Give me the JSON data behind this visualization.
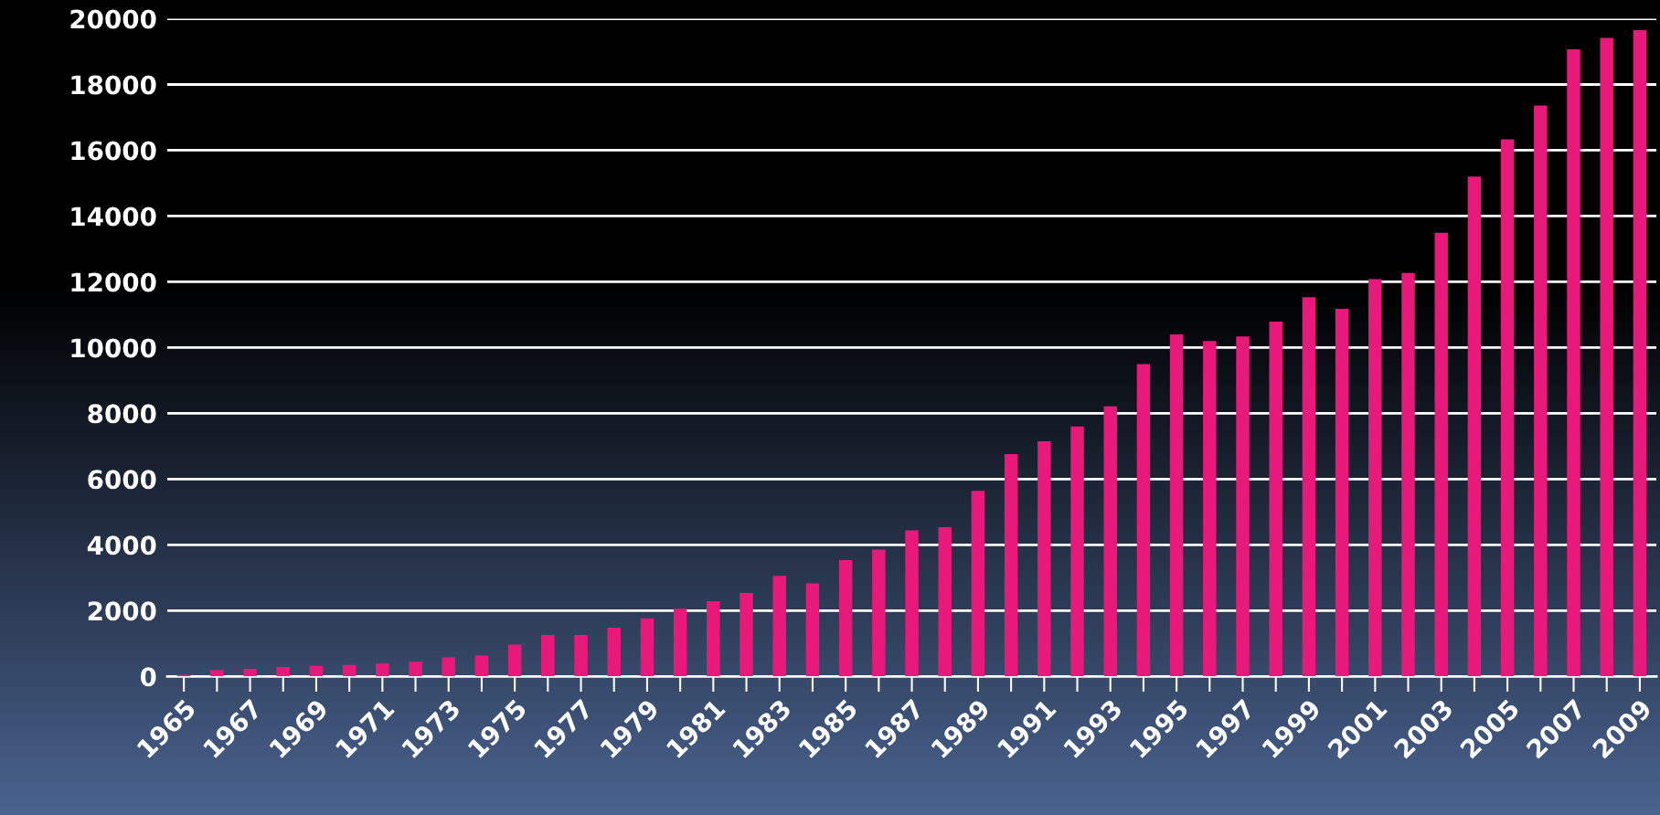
{
  "chart_data": {
    "type": "bar",
    "categories": [
      "1965",
      null,
      "1967",
      null,
      "1969",
      null,
      "1971",
      null,
      "1973",
      null,
      "1975",
      null,
      "1977",
      null,
      "1979",
      null,
      "1981",
      null,
      "1983",
      null,
      "1985",
      null,
      "1987",
      null,
      "1989",
      null,
      "1991",
      null,
      "1993",
      null,
      "1995",
      null,
      "1997",
      null,
      "1999",
      null,
      "2001",
      null,
      "2003",
      null,
      "2005",
      null,
      "2007",
      null,
      "2009"
    ],
    "values": [
      50,
      200,
      230,
      290,
      320,
      350,
      390,
      450,
      580,
      640,
      970,
      1260,
      1260,
      1480,
      1770,
      2060,
      2290,
      2540,
      3060,
      2830,
      3540,
      3860,
      4440,
      4540,
      5640,
      6760,
      7150,
      7600,
      8210,
      9500,
      10400,
      10200,
      10340,
      10790,
      11530,
      11180,
      12080,
      12270,
      13490,
      15200,
      16330,
      17360,
      19070,
      19420,
      19650
    ],
    "color": "#e8197a",
    "ylim": [
      0,
      20000
    ],
    "yticks": [
      0,
      2000,
      4000,
      6000,
      8000,
      10000,
      12000,
      14000,
      16000,
      18000,
      20000
    ],
    "grid": "y"
  }
}
